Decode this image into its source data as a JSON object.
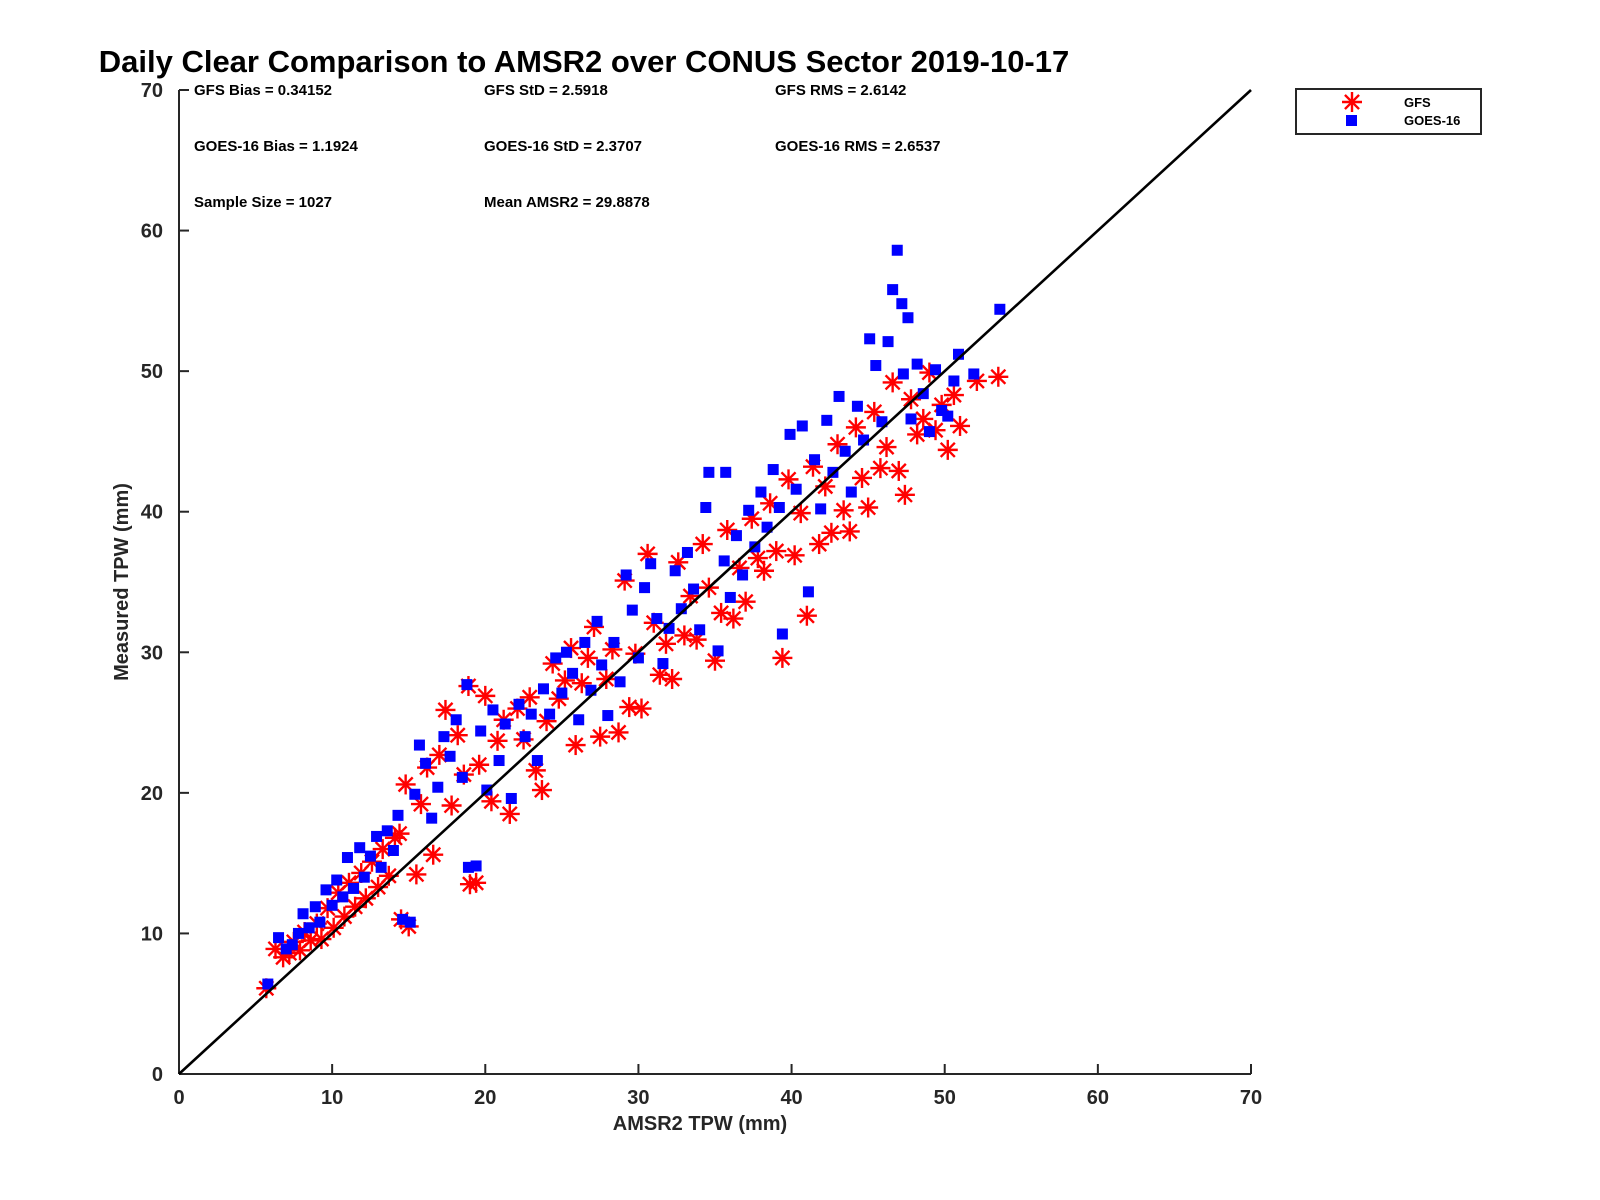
{
  "chart_data": {
    "type": "scatter",
    "title": "Daily Clear Comparison to AMSR2 over CONUS Sector 2019-10-17",
    "xlabel": "AMSR2 TPW (mm)",
    "ylabel": "Measured TPW (mm)",
    "xlim": [
      0,
      70
    ],
    "ylim": [
      0,
      70
    ],
    "xticks": [
      "0",
      "10",
      "20",
      "30",
      "40",
      "50",
      "60",
      "70"
    ],
    "yticks": [
      "0",
      "10",
      "20",
      "30",
      "40",
      "50",
      "60",
      "70"
    ],
    "grid": false,
    "legend_position": "top-right, outside plot",
    "reference_line": {
      "from": [
        0,
        0
      ],
      "to": [
        70,
        70
      ],
      "color": "#000000"
    },
    "stats": [
      "GFS Bias = 0.34152",
      "GFS StD = 2.5918",
      "GFS RMS = 2.6142",
      "GOES-16 Bias = 1.1924",
      "GOES-16 StD = 2.3707",
      "GOES-16 RMS = 2.6537",
      "Sample Size = 1027",
      "Mean AMSR2 = 29.8878"
    ],
    "series": [
      {
        "name": "GFS",
        "marker": "asterisk",
        "color": "#ff0000",
        "points": [
          [
            5.7,
            6.1
          ],
          [
            6.3,
            8.9
          ],
          [
            6.8,
            8.3
          ],
          [
            7.2,
            8.6
          ],
          [
            7.5,
            9.4
          ],
          [
            7.9,
            8.8
          ],
          [
            8.2,
            10.1
          ],
          [
            8.6,
            9.5
          ],
          [
            9.0,
            10.7
          ],
          [
            9.3,
            9.6
          ],
          [
            9.7,
            11.8
          ],
          [
            10.1,
            10.4
          ],
          [
            10.4,
            12.9
          ],
          [
            10.8,
            11.2
          ],
          [
            11.1,
            13.6
          ],
          [
            11.5,
            11.9
          ],
          [
            11.9,
            14.3
          ],
          [
            12.2,
            12.5
          ],
          [
            12.6,
            15.1
          ],
          [
            13.0,
            13.3
          ],
          [
            13.3,
            16.0
          ],
          [
            13.7,
            14.1
          ],
          [
            14.1,
            16.8
          ],
          [
            14.4,
            17.1
          ],
          [
            14.8,
            20.6
          ],
          [
            14.5,
            11.0
          ],
          [
            15.0,
            10.5
          ],
          [
            15.5,
            14.2
          ],
          [
            15.8,
            19.2
          ],
          [
            16.2,
            21.8
          ],
          [
            16.6,
            15.6
          ],
          [
            17.0,
            22.7
          ],
          [
            17.4,
            25.9
          ],
          [
            17.8,
            19.1
          ],
          [
            18.2,
            24.1
          ],
          [
            18.6,
            21.3
          ],
          [
            18.9,
            27.6
          ],
          [
            19.0,
            13.5
          ],
          [
            19.4,
            13.6
          ],
          [
            19.6,
            22.0
          ],
          [
            20.0,
            26.9
          ],
          [
            20.4,
            19.4
          ],
          [
            20.8,
            23.7
          ],
          [
            21.2,
            25.2
          ],
          [
            21.6,
            18.5
          ],
          [
            22.1,
            26.0
          ],
          [
            22.5,
            23.8
          ],
          [
            22.9,
            26.8
          ],
          [
            23.3,
            21.6
          ],
          [
            23.7,
            20.2
          ],
          [
            24.0,
            25.1
          ],
          [
            24.4,
            29.2
          ],
          [
            24.8,
            26.7
          ],
          [
            25.2,
            28.0
          ],
          [
            25.6,
            30.3
          ],
          [
            25.9,
            23.4
          ],
          [
            26.3,
            27.8
          ],
          [
            26.7,
            29.6
          ],
          [
            27.1,
            31.8
          ],
          [
            27.5,
            24.0
          ],
          [
            27.9,
            28.1
          ],
          [
            28.3,
            30.2
          ],
          [
            28.7,
            24.3
          ],
          [
            29.1,
            35.1
          ],
          [
            29.4,
            26.1
          ],
          [
            29.8,
            29.9
          ],
          [
            30.2,
            26.0
          ],
          [
            30.6,
            37.0
          ],
          [
            31.0,
            32.1
          ],
          [
            31.4,
            28.4
          ],
          [
            31.8,
            30.6
          ],
          [
            32.2,
            28.1
          ],
          [
            32.6,
            36.4
          ],
          [
            33.0,
            31.2
          ],
          [
            33.4,
            34.0
          ],
          [
            33.8,
            30.9
          ],
          [
            34.2,
            37.7
          ],
          [
            34.6,
            34.6
          ],
          [
            35.0,
            29.4
          ],
          [
            35.4,
            32.8
          ],
          [
            35.8,
            38.7
          ],
          [
            36.2,
            32.4
          ],
          [
            36.6,
            36.0
          ],
          [
            37.0,
            33.6
          ],
          [
            37.4,
            39.5
          ],
          [
            37.8,
            36.7
          ],
          [
            38.2,
            35.8
          ],
          [
            38.6,
            40.6
          ],
          [
            39.0,
            37.2
          ],
          [
            39.4,
            29.6
          ],
          [
            39.8,
            42.3
          ],
          [
            40.2,
            36.9
          ],
          [
            40.6,
            39.9
          ],
          [
            41.0,
            32.6
          ],
          [
            41.4,
            43.2
          ],
          [
            41.8,
            37.7
          ],
          [
            42.2,
            41.8
          ],
          [
            42.6,
            38.5
          ],
          [
            43.0,
            44.8
          ],
          [
            43.4,
            40.1
          ],
          [
            43.8,
            38.6
          ],
          [
            44.2,
            46.0
          ],
          [
            44.6,
            42.4
          ],
          [
            45.0,
            40.3
          ],
          [
            45.4,
            47.1
          ],
          [
            45.8,
            43.1
          ],
          [
            46.2,
            44.6
          ],
          [
            46.6,
            49.2
          ],
          [
            47.0,
            42.9
          ],
          [
            47.4,
            41.2
          ],
          [
            47.8,
            48.0
          ],
          [
            48.2,
            45.5
          ],
          [
            48.6,
            46.6
          ],
          [
            49.0,
            49.9
          ],
          [
            49.4,
            45.8
          ],
          [
            49.8,
            47.6
          ],
          [
            50.2,
            44.4
          ],
          [
            50.6,
            48.3
          ],
          [
            51.0,
            46.1
          ],
          [
            52.1,
            49.3
          ],
          [
            53.5,
            49.6
          ]
        ]
      },
      {
        "name": "GOES-16",
        "marker": "square",
        "color": "#0000ff",
        "points": [
          [
            5.8,
            6.4
          ],
          [
            6.5,
            9.7
          ],
          [
            7.0,
            8.9
          ],
          [
            7.4,
            9.2
          ],
          [
            7.8,
            10.0
          ],
          [
            8.1,
            11.4
          ],
          [
            8.5,
            10.4
          ],
          [
            8.9,
            11.9
          ],
          [
            9.2,
            10.8
          ],
          [
            9.6,
            13.1
          ],
          [
            10.0,
            12.0
          ],
          [
            10.3,
            13.8
          ],
          [
            10.7,
            12.6
          ],
          [
            11.0,
            15.4
          ],
          [
            11.4,
            13.2
          ],
          [
            11.8,
            16.1
          ],
          [
            12.1,
            14.0
          ],
          [
            12.5,
            15.5
          ],
          [
            12.9,
            16.9
          ],
          [
            13.2,
            14.7
          ],
          [
            13.6,
            17.3
          ],
          [
            14.0,
            15.9
          ],
          [
            14.3,
            18.4
          ],
          [
            14.6,
            11.0
          ],
          [
            15.1,
            10.8
          ],
          [
            15.4,
            19.9
          ],
          [
            15.7,
            23.4
          ],
          [
            16.1,
            22.1
          ],
          [
            16.5,
            18.2
          ],
          [
            16.9,
            20.4
          ],
          [
            17.3,
            24.0
          ],
          [
            17.7,
            22.6
          ],
          [
            18.1,
            25.2
          ],
          [
            18.5,
            21.1
          ],
          [
            18.8,
            27.7
          ],
          [
            18.9,
            14.7
          ],
          [
            19.4,
            14.8
          ],
          [
            19.7,
            24.4
          ],
          [
            20.1,
            20.2
          ],
          [
            20.5,
            25.9
          ],
          [
            20.9,
            22.3
          ],
          [
            21.3,
            24.9
          ],
          [
            21.7,
            19.6
          ],
          [
            22.2,
            26.3
          ],
          [
            22.6,
            24.0
          ],
          [
            23.0,
            25.6
          ],
          [
            23.4,
            22.3
          ],
          [
            23.8,
            27.4
          ],
          [
            24.2,
            25.6
          ],
          [
            24.6,
            29.6
          ],
          [
            25.0,
            27.1
          ],
          [
            25.3,
            30.0
          ],
          [
            25.7,
            28.5
          ],
          [
            26.1,
            25.2
          ],
          [
            26.5,
            30.7
          ],
          [
            26.9,
            27.3
          ],
          [
            27.3,
            32.2
          ],
          [
            27.6,
            29.1
          ],
          [
            28.0,
            25.5
          ],
          [
            28.4,
            30.7
          ],
          [
            28.8,
            27.9
          ],
          [
            29.2,
            35.5
          ],
          [
            29.6,
            33.0
          ],
          [
            30.0,
            29.6
          ],
          [
            30.4,
            34.6
          ],
          [
            30.8,
            36.3
          ],
          [
            31.2,
            32.4
          ],
          [
            31.6,
            29.2
          ],
          [
            32.0,
            31.7
          ],
          [
            32.4,
            35.8
          ],
          [
            32.8,
            33.1
          ],
          [
            33.2,
            37.1
          ],
          [
            33.6,
            34.5
          ],
          [
            34.0,
            31.6
          ],
          [
            34.4,
            40.3
          ],
          [
            34.6,
            42.8
          ],
          [
            35.2,
            30.1
          ],
          [
            35.7,
            42.8
          ],
          [
            35.6,
            36.5
          ],
          [
            36.0,
            33.9
          ],
          [
            36.4,
            38.3
          ],
          [
            36.8,
            35.5
          ],
          [
            37.2,
            40.1
          ],
          [
            37.6,
            37.5
          ],
          [
            38.0,
            41.4
          ],
          [
            38.4,
            38.9
          ],
          [
            38.8,
            43.0
          ],
          [
            39.2,
            40.3
          ],
          [
            39.4,
            31.3
          ],
          [
            39.9,
            45.5
          ],
          [
            40.3,
            41.6
          ],
          [
            40.7,
            46.1
          ],
          [
            41.1,
            34.3
          ],
          [
            41.5,
            43.7
          ],
          [
            41.9,
            40.2
          ],
          [
            42.3,
            46.5
          ],
          [
            42.7,
            42.8
          ],
          [
            43.1,
            48.2
          ],
          [
            43.5,
            44.3
          ],
          [
            43.9,
            41.4
          ],
          [
            44.3,
            47.5
          ],
          [
            44.7,
            45.1
          ],
          [
            45.1,
            52.3
          ],
          [
            45.5,
            50.4
          ],
          [
            45.9,
            46.4
          ],
          [
            46.3,
            52.1
          ],
          [
            46.6,
            55.8
          ],
          [
            46.9,
            58.6
          ],
          [
            47.2,
            54.8
          ],
          [
            47.6,
            53.8
          ],
          [
            47.3,
            49.8
          ],
          [
            47.8,
            46.6
          ],
          [
            48.2,
            50.5
          ],
          [
            48.6,
            48.4
          ],
          [
            49.0,
            45.7
          ],
          [
            49.4,
            50.1
          ],
          [
            49.8,
            47.2
          ],
          [
            50.2,
            46.8
          ],
          [
            50.6,
            49.3
          ],
          [
            50.9,
            51.2
          ],
          [
            51.9,
            49.8
          ],
          [
            53.6,
            54.4
          ]
        ]
      }
    ]
  }
}
